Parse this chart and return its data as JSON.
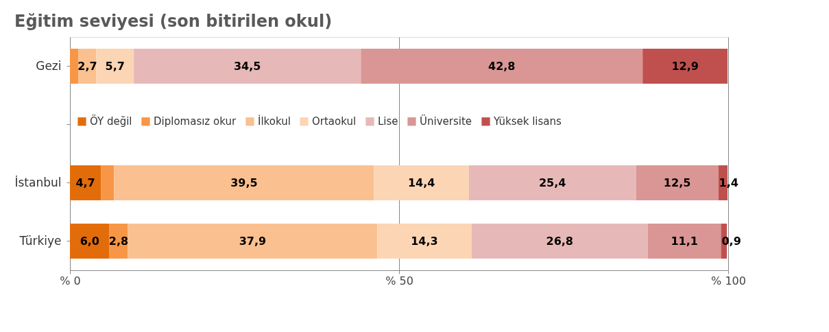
{
  "chart_data": {
    "type": "bar",
    "orientation": "horizontal",
    "stacked": true,
    "title": "Eğitim seviyesi (son bitirilen okul)",
    "categories": [
      "Gezi",
      null,
      "İstanbul",
      "Türkiye"
    ],
    "series": [
      {
        "name": "ÖY değil",
        "color": "#e36c0a",
        "values": [
          null,
          null,
          4.7,
          6.0
        ],
        "value_labels": [
          null,
          null,
          "4,7",
          "6,0"
        ]
      },
      {
        "name": "Diplomasız okur",
        "color": "#f79646",
        "values": [
          1.3,
          null,
          2.0,
          2.8
        ],
        "value_labels": [
          null,
          null,
          null,
          "2,8"
        ]
      },
      {
        "name": "İlkokul",
        "color": "#fac090",
        "values": [
          2.7,
          null,
          39.5,
          37.9
        ],
        "value_labels": [
          "2,7",
          null,
          "39,5",
          "37,9"
        ]
      },
      {
        "name": "Ortaokul",
        "color": "#fcd5b5",
        "values": [
          5.7,
          null,
          14.4,
          14.3
        ],
        "value_labels": [
          "5,7",
          null,
          "14,4",
          "14,3"
        ]
      },
      {
        "name": "Lise",
        "color": "#e6b9b8",
        "values": [
          34.5,
          null,
          25.4,
          26.8
        ],
        "value_labels": [
          "34,5",
          null,
          "25,4",
          "26,8"
        ]
      },
      {
        "name": "Üniversite",
        "color": "#d99694",
        "values": [
          42.8,
          null,
          12.5,
          11.1
        ],
        "value_labels": [
          "42,8",
          null,
          "12,5",
          "11,1"
        ]
      },
      {
        "name": "Yüksek lisans",
        "color": "#c0504d",
        "values": [
          12.9,
          null,
          1.4,
          0.9
        ],
        "value_labels": [
          "12,9",
          null,
          "1,4",
          "0,9"
        ]
      }
    ],
    "xlim": [
      0,
      100
    ],
    "xticks": [
      {
        "value": 0,
        "label": "% 0"
      },
      {
        "value": 50,
        "label": "% 50"
      },
      {
        "value": 100,
        "label": "% 100"
      }
    ],
    "grid": "x",
    "legend": "center"
  }
}
